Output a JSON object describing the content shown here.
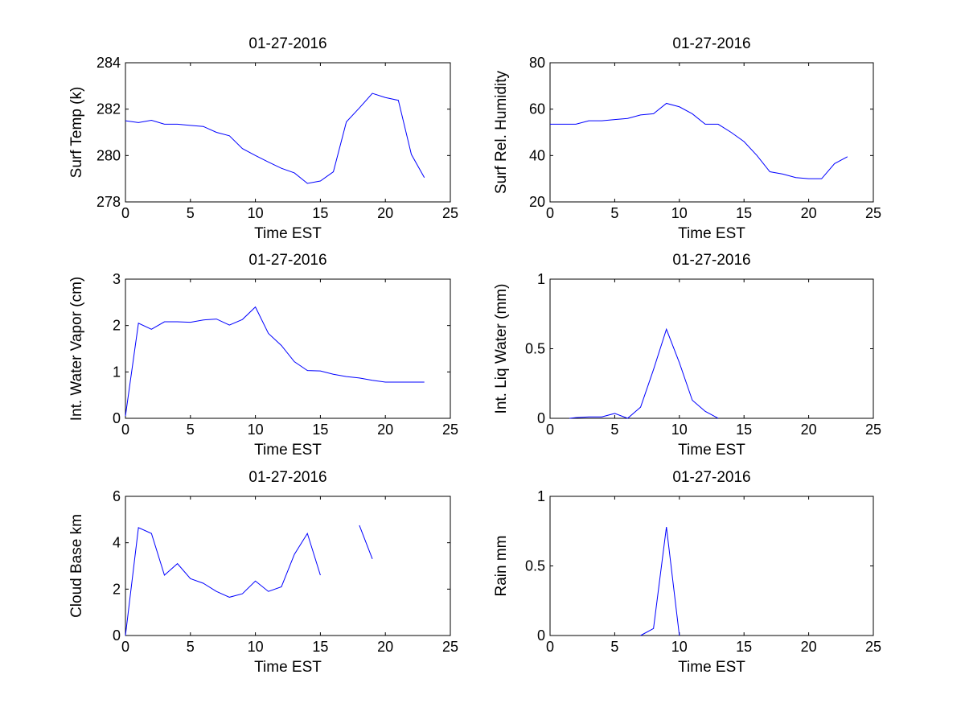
{
  "figure": {
    "background": "#ffffff",
    "line_color": "#0000ff"
  },
  "chart_data": [
    {
      "type": "line",
      "title": "01-27-2016",
      "xlabel": "Time EST",
      "ylabel": "Surf Temp (k)",
      "xlim": [
        0,
        25
      ],
      "ylim": [
        278,
        284
      ],
      "xticks": [
        "0",
        "5",
        "10",
        "15",
        "20",
        "25"
      ],
      "yticks": [
        "278",
        "280",
        "282",
        "284"
      ],
      "grid": false,
      "series": [
        {
          "segments": [
            [
              [
                0,
                281.5
              ],
              [
                1,
                281.42
              ],
              [
                2,
                281.52
              ],
              [
                3,
                281.35
              ],
              [
                4,
                281.35
              ],
              [
                5,
                281.3
              ],
              [
                6,
                281.25
              ],
              [
                7,
                281.0
              ],
              [
                8,
                280.85
              ],
              [
                9,
                280.3
              ],
              [
                10,
                280.0
              ],
              [
                11,
                279.72
              ],
              [
                12,
                279.45
              ],
              [
                13,
                279.25
              ],
              [
                14,
                278.8
              ],
              [
                15,
                278.9
              ],
              [
                16,
                279.3
              ],
              [
                17,
                281.45
              ],
              [
                18,
                282.05
              ],
              [
                19,
                282.68
              ],
              [
                20,
                282.5
              ],
              [
                21,
                282.38
              ],
              [
                22,
                280.05
              ],
              [
                23,
                279.05
              ]
            ]
          ]
        }
      ]
    },
    {
      "type": "line",
      "title": "01-27-2016",
      "xlabel": "Time EST",
      "ylabel": "Surf Rel. Humidity",
      "xlim": [
        0,
        25
      ],
      "ylim": [
        20,
        80
      ],
      "xticks": [
        "0",
        "5",
        "10",
        "15",
        "20",
        "25"
      ],
      "yticks": [
        "20",
        "40",
        "60",
        "80"
      ],
      "grid": false,
      "series": [
        {
          "segments": [
            [
              [
                0,
                53.5
              ],
              [
                1,
                53.5
              ],
              [
                2,
                53.5
              ],
              [
                3,
                55.0
              ],
              [
                4,
                55.0
              ],
              [
                5,
                55.5
              ],
              [
                6,
                56.0
              ],
              [
                7,
                57.5
              ],
              [
                8,
                58.0
              ],
              [
                9,
                62.5
              ],
              [
                10,
                61.0
              ],
              [
                11,
                58.0
              ],
              [
                12,
                53.5
              ],
              [
                13,
                53.5
              ],
              [
                14,
                50.0
              ],
              [
                15,
                46.0
              ],
              [
                16,
                40.0
              ],
              [
                17,
                33.0
              ],
              [
                18,
                32.0
              ],
              [
                19,
                30.5
              ],
              [
                20,
                30.0
              ],
              [
                21,
                30.0
              ],
              [
                22,
                36.5
              ],
              [
                23,
                39.5
              ]
            ]
          ]
        }
      ]
    },
    {
      "type": "line",
      "title": "01-27-2016",
      "xlabel": "Time EST",
      "ylabel": "Int. Water Vapor (cm)",
      "xlim": [
        0,
        25
      ],
      "ylim": [
        0,
        3
      ],
      "xticks": [
        "0",
        "5",
        "10",
        "15",
        "20",
        "25"
      ],
      "yticks": [
        "0",
        "1",
        "2",
        "3"
      ],
      "grid": false,
      "series": [
        {
          "segments": [
            [
              [
                0,
                0.05
              ],
              [
                1,
                2.05
              ],
              [
                2,
                1.92
              ],
              [
                3,
                2.08
              ],
              [
                4,
                2.08
              ],
              [
                5,
                2.07
              ],
              [
                6,
                2.12
              ],
              [
                7,
                2.14
              ],
              [
                8,
                2.01
              ],
              [
                9,
                2.13
              ],
              [
                10,
                2.4
              ],
              [
                11,
                1.83
              ],
              [
                12,
                1.57
              ],
              [
                13,
                1.22
              ],
              [
                14,
                1.03
              ],
              [
                15,
                1.02
              ],
              [
                16,
                0.95
              ],
              [
                17,
                0.9
              ],
              [
                18,
                0.87
              ],
              [
                19,
                0.82
              ],
              [
                20,
                0.78
              ],
              [
                21,
                0.78
              ],
              [
                22,
                0.78
              ],
              [
                23,
                0.78
              ]
            ]
          ]
        }
      ]
    },
    {
      "type": "line",
      "title": "01-27-2016",
      "xlabel": "Time EST",
      "ylabel": "Int. Liq Water (mm)",
      "xlim": [
        0,
        25
      ],
      "ylim": [
        0,
        1
      ],
      "xticks": [
        "0",
        "5",
        "10",
        "15",
        "20",
        "25"
      ],
      "yticks": [
        "0",
        "0.5",
        "1"
      ],
      "grid": false,
      "series": [
        {
          "segments": [
            [
              [
                1.5,
                0.0
              ],
              [
                2,
                0.005
              ],
              [
                3,
                0.01
              ],
              [
                4,
                0.01
              ],
              [
                5,
                0.035
              ],
              [
                6,
                0.0
              ],
              [
                7,
                0.08
              ],
              [
                8,
                0.35
              ],
              [
                9,
                0.64
              ],
              [
                10,
                0.4
              ],
              [
                11,
                0.13
              ],
              [
                12,
                0.05
              ],
              [
                13,
                0.0
              ]
            ]
          ]
        }
      ]
    },
    {
      "type": "line",
      "title": "01-27-2016",
      "xlabel": "Time EST",
      "ylabel": "Cloud Base km",
      "xlim": [
        0,
        25
      ],
      "ylim": [
        0,
        6
      ],
      "xticks": [
        "0",
        "5",
        "10",
        "15",
        "20",
        "25"
      ],
      "yticks": [
        "0",
        "2",
        "4",
        "6"
      ],
      "grid": false,
      "series": [
        {
          "segments": [
            [
              [
                0,
                0.0
              ],
              [
                1,
                4.65
              ],
              [
                2,
                4.4
              ],
              [
                3,
                2.6
              ],
              [
                4,
                3.1
              ],
              [
                5,
                2.45
              ],
              [
                6,
                2.25
              ],
              [
                7,
                1.9
              ],
              [
                8,
                1.65
              ],
              [
                9,
                1.8
              ],
              [
                10,
                2.35
              ],
              [
                11,
                1.9
              ],
              [
                12,
                2.1
              ],
              [
                13,
                3.5
              ],
              [
                14,
                4.4
              ],
              [
                15,
                2.6
              ]
            ],
            [
              [
                18,
                4.75
              ],
              [
                19,
                3.3
              ]
            ]
          ]
        }
      ]
    },
    {
      "type": "line",
      "title": "01-27-2016",
      "xlabel": "Time EST",
      "ylabel": "Rain mm",
      "xlim": [
        0,
        25
      ],
      "ylim": [
        0,
        1
      ],
      "xticks": [
        "0",
        "5",
        "10",
        "15",
        "20",
        "25"
      ],
      "yticks": [
        "0",
        "0.5",
        "1"
      ],
      "grid": false,
      "series": [
        {
          "segments": [
            [
              [
                7,
                0.0
              ],
              [
                8,
                0.05
              ],
              [
                9,
                0.78
              ],
              [
                10,
                0.0
              ]
            ]
          ]
        }
      ]
    }
  ]
}
